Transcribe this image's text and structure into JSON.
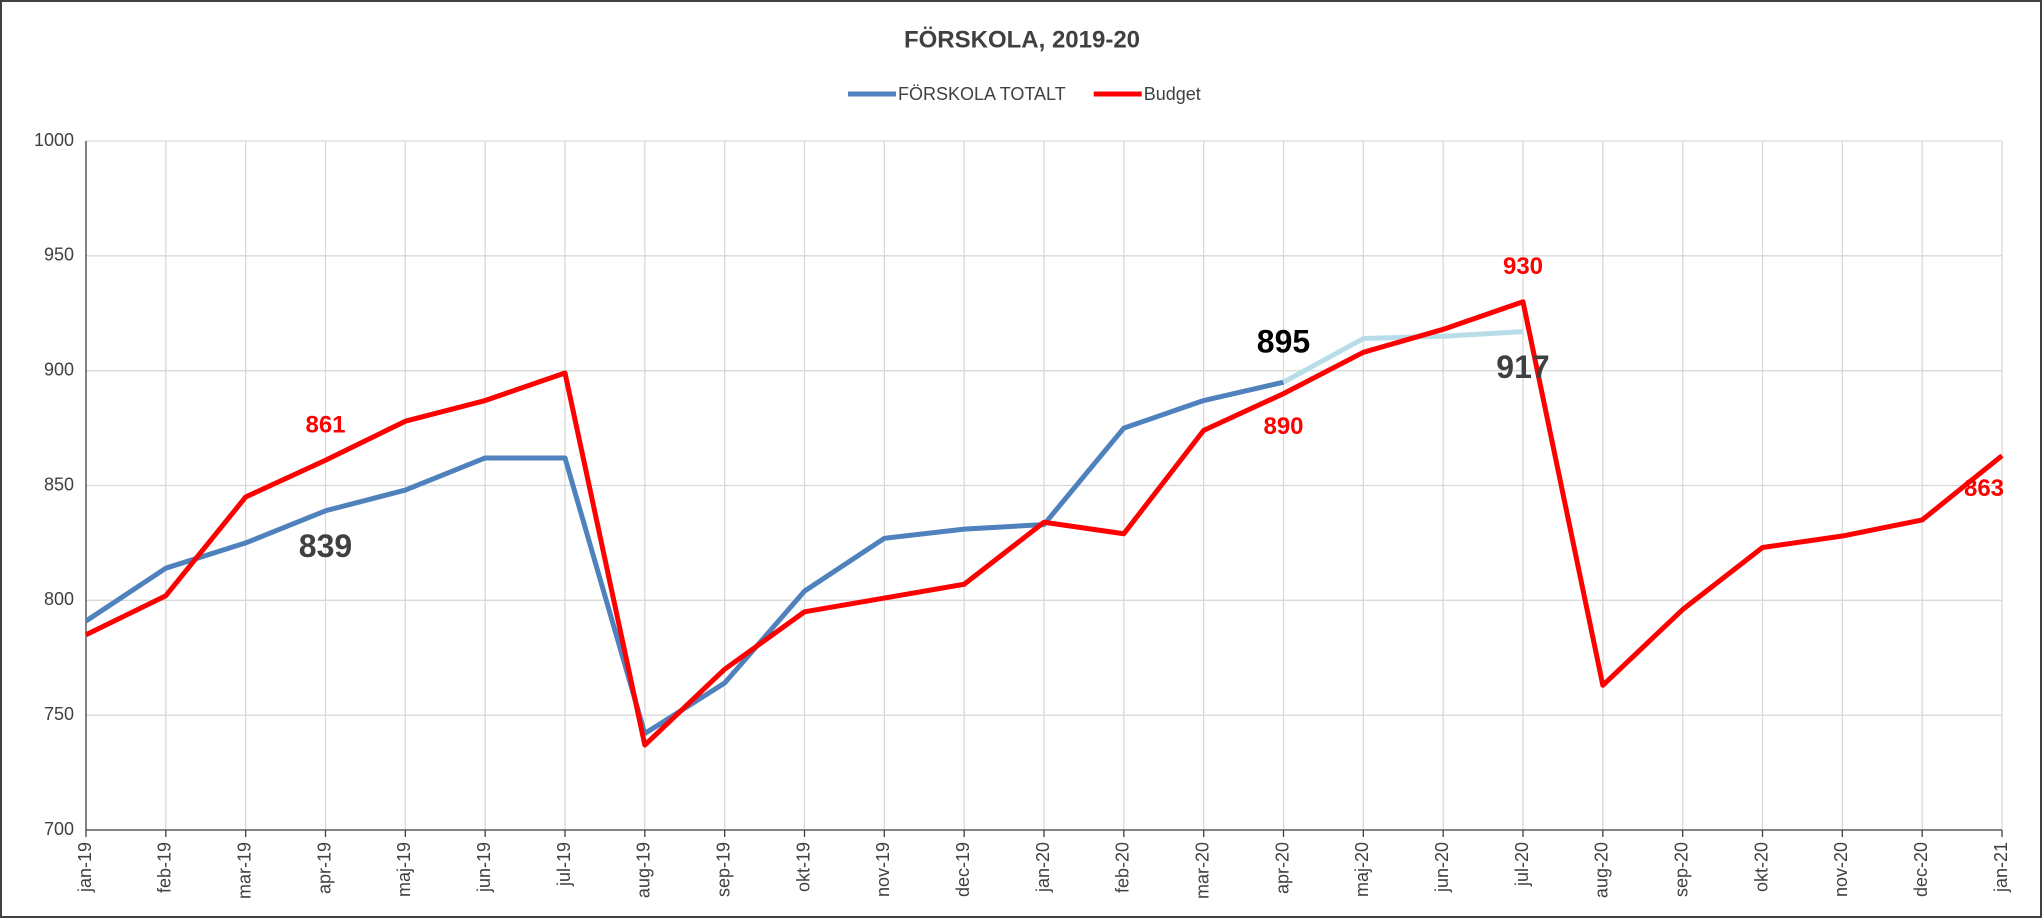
{
  "chart_data": {
    "type": "line",
    "title": "FÖRSKOLA, 2019-20",
    "categories": [
      "jan-19",
      "feb-19",
      "mar-19",
      "apr-19",
      "maj-19",
      "jun-19",
      "jul-19",
      "aug-19",
      "sep-19",
      "okt-19",
      "nov-19",
      "dec-19",
      "jan-20",
      "feb-20",
      "mar-20",
      "apr-20",
      "maj-20",
      "jun-20",
      "jul-20",
      "aug-20",
      "sep-20",
      "okt-20",
      "nov-20",
      "dec-20",
      "jan-21"
    ],
    "series": [
      {
        "name": "FÖRSKOLA TOTALT",
        "color": "#4f81bd",
        "values": [
          791,
          814,
          825,
          839,
          848,
          862,
          862,
          742,
          764,
          804,
          827,
          831,
          833,
          875,
          887,
          895,
          null,
          null,
          null,
          null,
          null,
          null,
          null,
          null,
          null
        ]
      },
      {
        "color": "#b7dde8",
        "values": [
          null,
          null,
          null,
          null,
          null,
          null,
          null,
          null,
          null,
          null,
          null,
          null,
          null,
          null,
          null,
          895,
          914,
          915,
          917,
          null,
          null,
          null,
          null,
          null,
          null
        ]
      },
      {
        "name": "Budget",
        "color": "#ff0000",
        "values": [
          785,
          802,
          845,
          861,
          878,
          887,
          899,
          737,
          770,
          795,
          801,
          807,
          834,
          829,
          874,
          890,
          908,
          918,
          930,
          763,
          796,
          823,
          828,
          835,
          863
        ]
      }
    ],
    "data_labels": [
      {
        "series": 2,
        "index": 3,
        "color": "#ff0000",
        "position": "above",
        "size": "normal"
      },
      {
        "series": 0,
        "index": 3,
        "color": "#404040",
        "position": "below",
        "size": "large"
      },
      {
        "series": 0,
        "index": 15,
        "color": "#000000",
        "position": "above",
        "size": "large"
      },
      {
        "series": 2,
        "index": 15,
        "color": "#ff0000",
        "position": "below",
        "size": "normal"
      },
      {
        "series": 1,
        "index": 18,
        "color": "#404040",
        "position": "below",
        "size": "large"
      },
      {
        "series": 2,
        "index": 18,
        "color": "#ff0000",
        "position": "above",
        "size": "normal"
      },
      {
        "series": 2,
        "index": 24,
        "color": "#ff0000",
        "position": "below",
        "size": "normal"
      }
    ],
    "ylim": [
      700,
      1000
    ],
    "yticks": [
      700,
      750,
      800,
      850,
      900,
      950,
      1000
    ],
    "grid": true,
    "legend": "top"
  }
}
